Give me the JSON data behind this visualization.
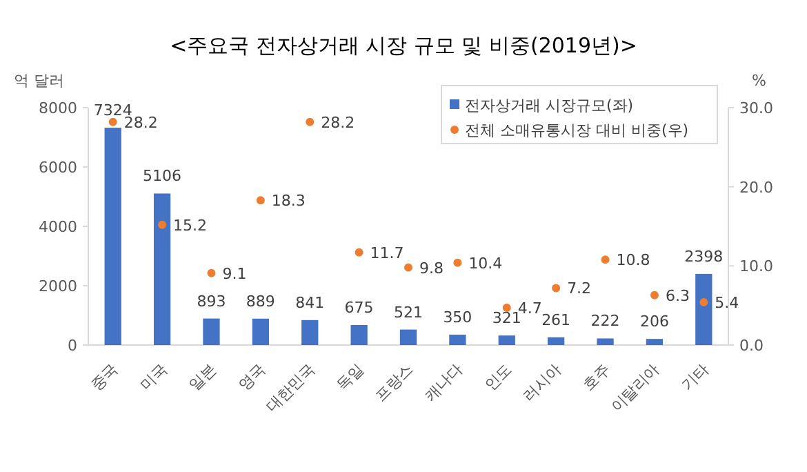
{
  "chart_data": {
    "type": "bar",
    "title": "<주요국 전자상거래 시장 규모 및 비중(2019년)>",
    "ylabel": "억 달러",
    "y2label": "%",
    "categories": [
      "중국",
      "미국",
      "일본",
      "영국",
      "대한민국",
      "독일",
      "프랑스",
      "캐나다",
      "인도",
      "러시아",
      "호주",
      "이탈리아",
      "기타"
    ],
    "series": [
      {
        "name": "전자상거래 시장규모(좌)",
        "color": "#4472c4",
        "values": [
          7324,
          5106,
          893,
          889,
          841,
          675,
          521,
          350,
          321,
          261,
          222,
          206,
          2398
        ]
      },
      {
        "name": "전체 소매유통시장 대비 비중(우)",
        "type": "scatter",
        "axis": "y2",
        "marker": "circle",
        "color": "#ed7d31",
        "values": [
          28.2,
          15.2,
          9.1,
          18.3,
          28.2,
          11.7,
          9.8,
          10.4,
          4.7,
          7.2,
          10.8,
          6.3,
          5.4
        ]
      }
    ],
    "ylim": [
      0,
      8000
    ],
    "yticks": [
      0,
      2000,
      4000,
      6000,
      8000
    ],
    "y2lim": [
      0,
      30
    ],
    "y2ticks": [
      {
        "value": 0,
        "label": "0.0"
      },
      {
        "value": 10,
        "label": "10.0"
      },
      {
        "value": 20,
        "label": "20.0"
      },
      {
        "value": 30,
        "label": "30.0"
      }
    ],
    "legend": "top right",
    "data_labels": true
  }
}
